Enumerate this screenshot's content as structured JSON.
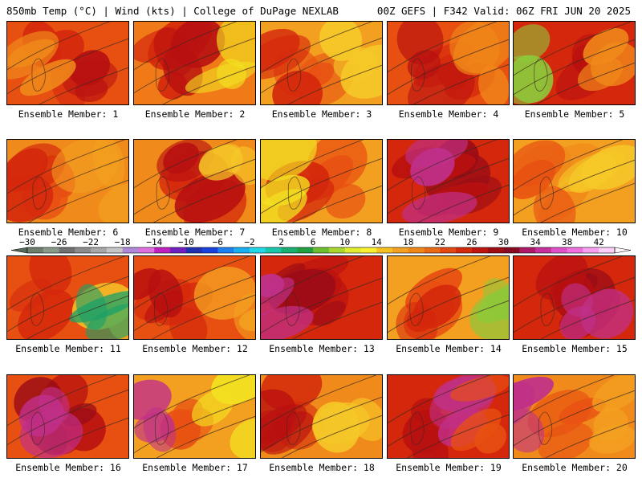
{
  "header": {
    "left_title": "850mb Temp (°C) | Wind (kts) | College of DuPage NEXLAB",
    "right_title": "00Z GEFS | F342 Valid: 06Z FRI JUN 20 2025"
  },
  "members": [
    {
      "label": "Ensemble Member: 1",
      "base": "#e85012",
      "blobs": [
        [
          "#d4270c",
          0.45
        ],
        [
          "#b81010",
          0.62
        ],
        [
          "#f08a1a",
          0.2
        ]
      ]
    },
    {
      "label": "Ensemble Member: 2",
      "base": "#f07a18",
      "blobs": [
        [
          "#d4270c",
          0.35
        ],
        [
          "#b81010",
          0.5
        ],
        [
          "#f2e020",
          0.8
        ]
      ]
    },
    {
      "label": "Ensemble Member: 3",
      "base": "#f3a020",
      "blobs": [
        [
          "#e85012",
          0.4
        ],
        [
          "#f5c828",
          0.7
        ],
        [
          "#d4270c",
          0.3
        ]
      ]
    },
    {
      "label": "Ensemble Member: 4",
      "base": "#e85012",
      "blobs": [
        [
          "#d4270c",
          0.5
        ],
        [
          "#b81010",
          0.4
        ],
        [
          "#f08a1a",
          0.75
        ]
      ]
    },
    {
      "label": "Ensemble Member: 5",
      "base": "#d4270c",
      "blobs": [
        [
          "#b81010",
          0.5
        ],
        [
          "#f08a1a",
          0.7
        ],
        [
          "#8ec83a",
          0.15
        ]
      ]
    },
    {
      "label": "Ensemble Member: 6",
      "base": "#f08a1a",
      "blobs": [
        [
          "#e85012",
          0.35
        ],
        [
          "#d4270c",
          0.25
        ],
        [
          "#f3a020",
          0.8
        ]
      ]
    },
    {
      "label": "Ensemble Member: 7",
      "base": "#f08a1a",
      "blobs": [
        [
          "#d4270c",
          0.55
        ],
        [
          "#b81010",
          0.45
        ],
        [
          "#f5c828",
          0.85
        ]
      ]
    },
    {
      "label": "Ensemble Member: 8",
      "base": "#f3a020",
      "blobs": [
        [
          "#e85012",
          0.55
        ],
        [
          "#d4270c",
          0.4
        ],
        [
          "#f2e020",
          0.2
        ]
      ]
    },
    {
      "label": "Ensemble Member: 9",
      "base": "#d4270c",
      "blobs": [
        [
          "#9a0c16",
          0.5
        ],
        [
          "#b81010",
          0.4
        ],
        [
          "#c0308a",
          0.35
        ]
      ]
    },
    {
      "label": "Ensemble Member: 10",
      "base": "#f3a020",
      "blobs": [
        [
          "#f08a1a",
          0.4
        ],
        [
          "#f5c828",
          0.75
        ],
        [
          "#e85012",
          0.3
        ]
      ]
    },
    {
      "label": "Ensemble Member: 11",
      "base": "#e85012",
      "blobs": [
        [
          "#d4270c",
          0.35
        ],
        [
          "#f5c828",
          0.75
        ],
        [
          "#1aa068",
          0.82
        ]
      ]
    },
    {
      "label": "Ensemble Member: 12",
      "base": "#e85012",
      "blobs": [
        [
          "#d4270c",
          0.4
        ],
        [
          "#b81010",
          0.3
        ],
        [
          "#f3a020",
          0.8
        ]
      ]
    },
    {
      "label": "Ensemble Member: 13",
      "base": "#d4270c",
      "blobs": [
        [
          "#b81010",
          0.5
        ],
        [
          "#9a0c16",
          0.3
        ],
        [
          "#c0308a",
          0.25
        ]
      ]
    },
    {
      "label": "Ensemble Member: 14",
      "base": "#f3a020",
      "blobs": [
        [
          "#e85012",
          0.35
        ],
        [
          "#d4270c",
          0.3
        ],
        [
          "#8ec83a",
          0.85
        ]
      ]
    },
    {
      "label": "Ensemble Member: 15",
      "base": "#d4270c",
      "blobs": [
        [
          "#9a0c16",
          0.5
        ],
        [
          "#b81010",
          0.4
        ],
        [
          "#c0308a",
          0.55
        ]
      ]
    },
    {
      "label": "Ensemble Member: 16",
      "base": "#e85012",
      "blobs": [
        [
          "#b81010",
          0.45
        ],
        [
          "#9a0c16",
          0.42
        ],
        [
          "#c0308a",
          0.45
        ]
      ]
    },
    {
      "label": "Ensemble Member: 17",
      "base": "#f3a020",
      "blobs": [
        [
          "#e85012",
          0.3
        ],
        [
          "#f2e020",
          0.8
        ],
        [
          "#c0308a",
          0.1
        ]
      ]
    },
    {
      "label": "Ensemble Member: 18",
      "base": "#f08a1a",
      "blobs": [
        [
          "#d4270c",
          0.2
        ],
        [
          "#b81010",
          0.15
        ],
        [
          "#f5c828",
          0.75
        ]
      ]
    },
    {
      "label": "Ensemble Member: 19",
      "base": "#d4270c",
      "blobs": [
        [
          "#b81010",
          0.4
        ],
        [
          "#c0308a",
          0.5
        ],
        [
          "#e85012",
          0.75
        ]
      ]
    },
    {
      "label": "Ensemble Member: 20",
      "base": "#f08a1a",
      "blobs": [
        [
          "#e85012",
          0.4
        ],
        [
          "#c0308a",
          0.12
        ],
        [
          "#f3a020",
          0.8
        ]
      ]
    }
  ],
  "colorbar": {
    "labels": [
      "-30",
      "-26",
      "-22",
      "-18",
      "-14",
      "-10",
      "-6",
      "-2",
      "2",
      "6",
      "10",
      "14",
      "18",
      "22",
      "26",
      "30",
      "34",
      "38",
      "42"
    ],
    "colors": [
      "#6e7e6e",
      "#8a9a8a",
      "#707070",
      "#8c8c8c",
      "#a8a8a8",
      "#c6c6c6",
      "#b088d8",
      "#e070e0",
      "#c020c0",
      "#7020c0",
      "#2030b0",
      "#1a40e0",
      "#1c80f0",
      "#18b0f0",
      "#20d8e8",
      "#18c8a8",
      "#18b070",
      "#20a040",
      "#6cc030",
      "#a8d830",
      "#e0ec30",
      "#f8f030",
      "#f8c020",
      "#f4a020",
      "#f08818",
      "#ec6a14",
      "#e44810",
      "#d42a0c",
      "#c01410",
      "#a00c14",
      "#880a20",
      "#b01868",
      "#c8309c",
      "#e050c8",
      "#f070e0",
      "#f8a0f0",
      "#fcd0f8"
    ]
  }
}
